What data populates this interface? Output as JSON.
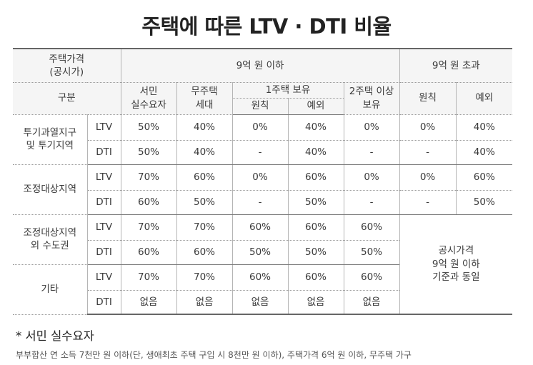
{
  "title": "주택에 따른 LTV · DTI 비율",
  "header": {
    "price_label": "주택가격\n(공시가)",
    "under_9": "9억 원 이하",
    "over_9": "9억 원 초과",
    "category": "구분",
    "low_income": "서민\n실수요자",
    "no_house": "무주택\n세대",
    "one_house": "1주택 보유",
    "multi_house": "2주택 이상\n보유",
    "principle": "원칙",
    "exception": "예외",
    "one_principle": "원칙",
    "one_exception": "예외"
  },
  "rows": [
    {
      "region": "투기과열지구\n및 투기지역",
      "metric": "LTV",
      "values": [
        "50%",
        "40%",
        "0%",
        "40%",
        "0%",
        "0%",
        "40%"
      ]
    },
    {
      "metric": "DTI",
      "values": [
        "50%",
        "40%",
        "-",
        "40%",
        "-",
        "-",
        "40%"
      ]
    },
    {
      "region": "조정대상지역",
      "metric": "LTV",
      "values": [
        "70%",
        "60%",
        "0%",
        "60%",
        "0%",
        "0%",
        "60%"
      ]
    },
    {
      "metric": "DTI",
      "values": [
        "60%",
        "50%",
        "-",
        "50%",
        "-",
        "-",
        "50%"
      ]
    },
    {
      "region": "조정대상지역\n외 수도권",
      "metric": "LTV",
      "values": [
        "70%",
        "70%",
        "60%",
        "60%",
        "60%"
      ]
    },
    {
      "metric": "DTI",
      "values": [
        "60%",
        "60%",
        "50%",
        "50%",
        "50%"
      ]
    },
    {
      "region": "기타",
      "metric": "LTV",
      "values": [
        "70%",
        "70%",
        "60%",
        "60%",
        "60%"
      ]
    },
    {
      "metric": "DTI",
      "values": [
        "없음",
        "없음",
        "없음",
        "없음",
        "없음"
      ]
    }
  ],
  "merged_note": "공시가격\n9억 원 이하\n기준과 동일",
  "footnote": {
    "title": "* 서민 실수요자",
    "text": "부부합산 연 소득 7천만 원 이하(단, 생애최초 주택 구입 시 8천만 원 이하), 주택가격 6억 원 이하, 무주택 가구"
  },
  "colors": {
    "header_bg": "#f5f5f5",
    "rule": "#666666"
  }
}
